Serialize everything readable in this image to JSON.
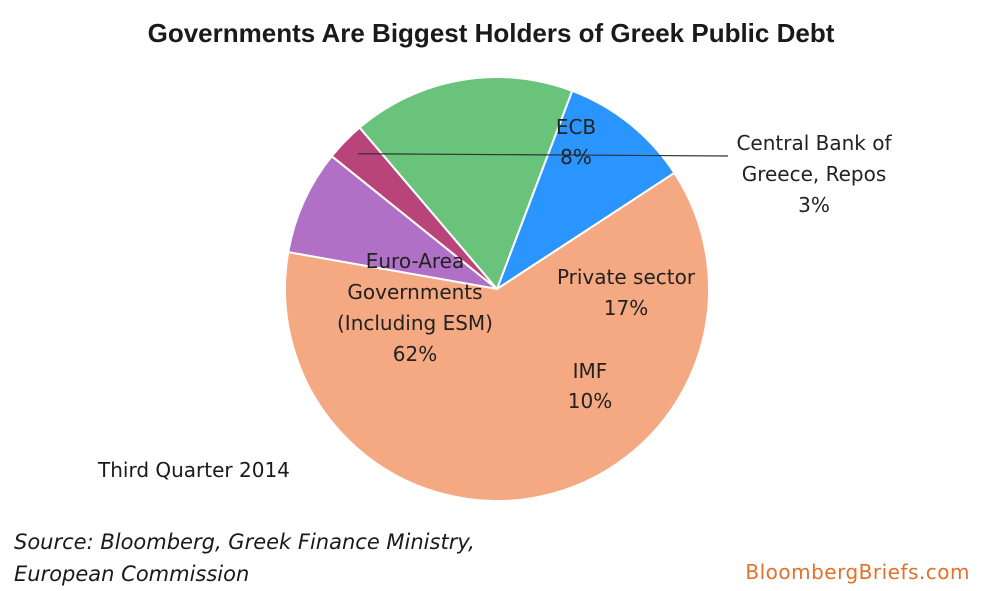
{
  "chart_data": {
    "type": "pie",
    "title": "Governments Are Biggest Holders of Greek Public Debt",
    "slices": [
      {
        "label": [
          "ECB"
        ],
        "pct_text": "8%",
        "value": 8,
        "color": "#b070c6"
      },
      {
        "label": [
          "Central Bank of",
          "Greece, Repos"
        ],
        "pct_text": "3%",
        "value": 3,
        "color": "#b8447a"
      },
      {
        "label": [
          "Private sector"
        ],
        "pct_text": "17%",
        "value": 17,
        "color": "#69c37a"
      },
      {
        "label": [
          "IMF"
        ],
        "pct_text": "10%",
        "value": 10,
        "color": "#2b95ff"
      },
      {
        "label": [
          "Euro-Area",
          "Governments",
          "(Including ESM)"
        ],
        "pct_text": "62%",
        "value": 62,
        "color": "#f5a982"
      }
    ]
  },
  "annotations": {
    "period": "Third Quarter 2014",
    "source_lines": [
      "Source: Bloomberg, Greek Finance Ministry,",
      "European Commission"
    ],
    "brand": "BloombergBriefs.com"
  }
}
